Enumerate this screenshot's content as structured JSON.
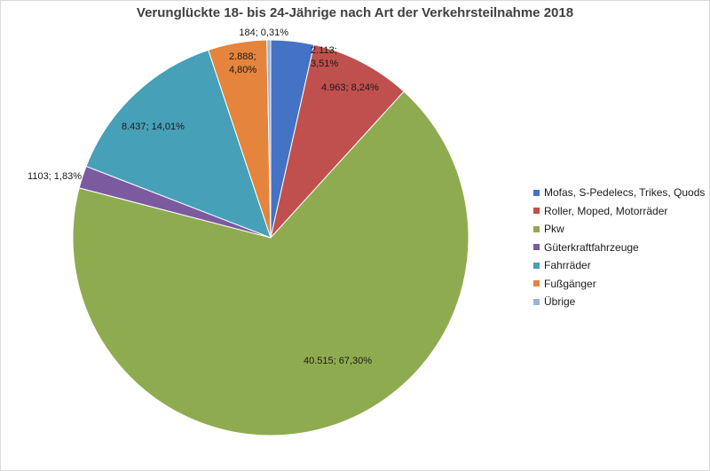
{
  "chart_data": {
    "type": "pie",
    "title": "Verunglückte 18- bis 24-Jährige nach Art der Verkehrsteilnahme 2018",
    "legend_position": "right",
    "slices": [
      {
        "name": "Mofas, S-Pedelecs, Trikes, Quods",
        "value": 2113,
        "label": "2.113; 3,51%",
        "color": "#4472C4"
      },
      {
        "name": "Roller, Moped, Motorräder",
        "value": 4963,
        "label": "4.963; 8,24%",
        "color": "#C0504D"
      },
      {
        "name": "Pkw",
        "value": 40515,
        "label": "40.515; 67,30%",
        "color": "#8EAC4F"
      },
      {
        "name": "Güterkraftfahrzeuge",
        "value": 1103,
        "label": "1103; 1,83%",
        "color": "#7B5AA0"
      },
      {
        "name": "Fahrräder",
        "value": 8437,
        "label": "8.437; 14,01%",
        "color": "#46A0B8"
      },
      {
        "name": "Fußgänger",
        "value": 2888,
        "label": "2.888; 4,80%",
        "color": "#E5843C"
      },
      {
        "name": "Übrige",
        "value": 184,
        "label": "184; 0,31%",
        "color": "#9DB3DB"
      }
    ]
  }
}
